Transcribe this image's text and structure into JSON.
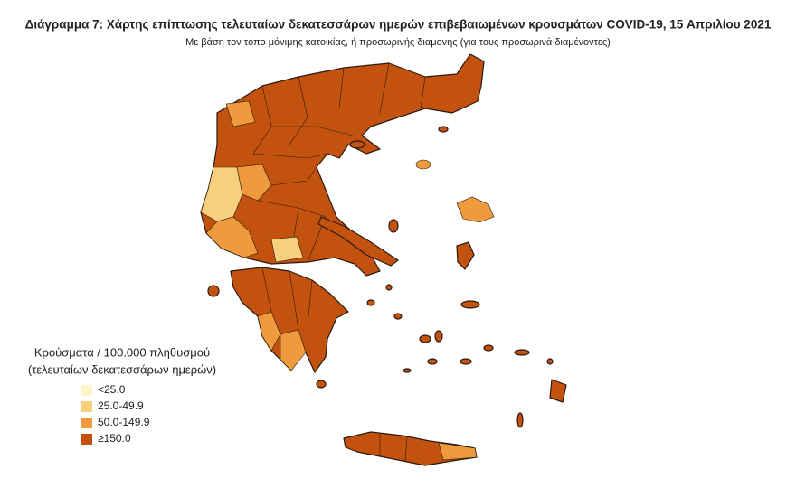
{
  "header": {
    "title": "Διάγραμμα 7: Χάρτης επίπτωσης τελευταίων δεκατεσσάρων ημερών επιβεβαιωμένων κρουσμάτων COVID-19, 15 Απριλίου 2021",
    "subtitle": "Με βάση τον τόπο μόνιμης κατοικίας, ή προσωρινής διαμονής (για τους προσωρινά διαμένοντες)"
  },
  "legend": {
    "title": [
      "Κρούσματα / 100.000 πληθυσμού",
      "(τελευταίων δεκατεσσάρων ημερών)"
    ],
    "items": [
      {
        "label": "<25.0",
        "color": "#fdf5c9"
      },
      {
        "label": "25.0-49.9",
        "color": "#f7d07e"
      },
      {
        "label": "50.0-149.9",
        "color": "#ef9a3d"
      },
      {
        "label": "≥150.0",
        "color": "#c4520f"
      }
    ]
  }
}
